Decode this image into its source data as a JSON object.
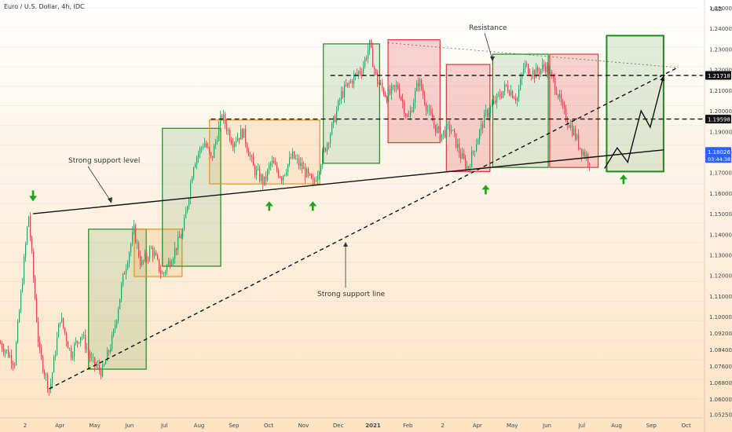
{
  "header": {
    "title": "Euro / U.S. Dollar, 4h, IDC"
  },
  "colors": {
    "bg_top": "#ffffff",
    "bg_bottom": "#fde3c4",
    "green": "#1e8a1e",
    "green_fill": "rgba(46,139,46,0.14)",
    "red": "#d63a3a",
    "red_fill": "rgba(220,60,60,0.22)",
    "orange": "#e8921c",
    "orange_fill": "rgba(240,150,40,0.15)",
    "candle_up": "#2e9b6c",
    "candle_down": "#d6454a",
    "price_tag_blue": "#2962ff",
    "marker_green": "#1aa51a"
  },
  "chart_data": {
    "type": "candlestick",
    "symbol": "Euro / U.S. Dollar",
    "timeframe": "4h",
    "source": "IDC",
    "x_ticks": [
      "2",
      "Apr",
      "May",
      "Jun",
      "Jul",
      "Aug",
      "Sep",
      "Oct",
      "Nov",
      "Dec",
      "2021",
      "Feb",
      "2",
      "Apr",
      "May",
      "Jun",
      "Jul",
      "Aug",
      "Sep",
      "Oct"
    ],
    "y_ticks": [
      "1.25000",
      "1.24000",
      "1.23000",
      "1.22000",
      "1.21000",
      "1.20000",
      "1.19000",
      "1.18000",
      "1.17000",
      "1.16000",
      "1.15000",
      "1.14000",
      "1.13000",
      "1.12000",
      "1.11000",
      "1.10000",
      "1.09200",
      "1.08400",
      "1.07600",
      "1.06800",
      "1.06000",
      "1.05250"
    ],
    "currency_label": "USD",
    "price_tags": [
      {
        "label": "1.21718",
        "value": 1.21718,
        "style": "dark"
      },
      {
        "label": "1.19598",
        "value": 1.19598,
        "style": "dark"
      },
      {
        "label": "1.18026",
        "value": 1.18026,
        "style": "blue",
        "sub": "03:44:38"
      }
    ],
    "annotations": [
      {
        "text": "Resistance"
      },
      {
        "text": "Strong support level"
      },
      {
        "text": "Strong support line"
      }
    ],
    "horizontal_levels": [
      1.21718,
      1.19598
    ],
    "price_path": [
      [
        0.0,
        1.087
      ],
      [
        0.02,
        1.078
      ],
      [
        0.04,
        1.15
      ],
      [
        0.055,
        1.083
      ],
      [
        0.07,
        1.064
      ],
      [
        0.085,
        1.1
      ],
      [
        0.1,
        1.082
      ],
      [
        0.115,
        1.092
      ],
      [
        0.13,
        1.078
      ],
      [
        0.145,
        1.073
      ],
      [
        0.16,
        1.09
      ],
      [
        0.175,
        1.12
      ],
      [
        0.19,
        1.142
      ],
      [
        0.2,
        1.125
      ],
      [
        0.215,
        1.133
      ],
      [
        0.23,
        1.12
      ],
      [
        0.245,
        1.13
      ],
      [
        0.26,
        1.142
      ],
      [
        0.275,
        1.175
      ],
      [
        0.29,
        1.185
      ],
      [
        0.3,
        1.176
      ],
      [
        0.315,
        1.198
      ],
      [
        0.33,
        1.185
      ],
      [
        0.345,
        1.19
      ],
      [
        0.36,
        1.172
      ],
      [
        0.375,
        1.165
      ],
      [
        0.385,
        1.175
      ],
      [
        0.4,
        1.168
      ],
      [
        0.415,
        1.178
      ],
      [
        0.43,
        1.172
      ],
      [
        0.445,
        1.164
      ],
      [
        0.46,
        1.18
      ],
      [
        0.47,
        1.19
      ],
      [
        0.485,
        1.208
      ],
      [
        0.5,
        1.215
      ],
      [
        0.515,
        1.221
      ],
      [
        0.525,
        1.232
      ],
      [
        0.535,
        1.215
      ],
      [
        0.55,
        1.207
      ],
      [
        0.565,
        1.212
      ],
      [
        0.58,
        1.195
      ],
      [
        0.595,
        1.215
      ],
      [
        0.61,
        1.198
      ],
      [
        0.625,
        1.188
      ],
      [
        0.64,
        1.192
      ],
      [
        0.655,
        1.178
      ],
      [
        0.665,
        1.172
      ],
      [
        0.675,
        1.183
      ],
      [
        0.69,
        1.198
      ],
      [
        0.705,
        1.205
      ],
      [
        0.72,
        1.212
      ],
      [
        0.735,
        1.206
      ],
      [
        0.745,
        1.222
      ],
      [
        0.76,
        1.218
      ],
      [
        0.775,
        1.222
      ],
      [
        0.79,
        1.212
      ],
      [
        0.8,
        1.2
      ],
      [
        0.815,
        1.19
      ],
      [
        0.825,
        1.182
      ],
      [
        0.84,
        1.175
      ]
    ],
    "boxes": [
      {
        "color": "green",
        "x1": 0.126,
        "x2": 0.208,
        "y1": 1.0745,
        "y2": 1.1425
      },
      {
        "color": "orange",
        "x1": 0.191,
        "x2": 0.259,
        "y1": 1.1195,
        "y2": 1.1425
      },
      {
        "color": "green",
        "x1": 0.231,
        "x2": 0.314,
        "y1": 1.1245,
        "y2": 1.1915
      },
      {
        "color": "orange",
        "x1": 0.298,
        "x2": 0.455,
        "y1": 1.1645,
        "y2": 1.1955
      },
      {
        "color": "green",
        "x1": 0.46,
        "x2": 0.54,
        "y1": 1.1745,
        "y2": 1.2325
      },
      {
        "color": "red",
        "x1": 0.552,
        "x2": 0.626,
        "y1": 1.1845,
        "y2": 1.2345
      },
      {
        "color": "red",
        "x1": 0.635,
        "x2": 0.697,
        "y1": 1.1705,
        "y2": 1.2225
      },
      {
        "color": "green",
        "x1": 0.701,
        "x2": 0.78,
        "y1": 1.1725,
        "y2": 1.2275
      },
      {
        "color": "red",
        "x1": 0.782,
        "x2": 0.851,
        "y1": 1.1725,
        "y2": 1.2275
      },
      {
        "color": "green",
        "x1": 0.863,
        "x2": 0.944,
        "y1": 1.1705,
        "y2": 1.2365
      }
    ],
    "lines": [
      {
        "kind": "solid",
        "p1": [
          0.047,
          1.15
        ],
        "p2": [
          0.944,
          1.181
        ]
      },
      {
        "kind": "dashed",
        "p1": [
          0.07,
          1.065
        ],
        "p2": [
          0.964,
          1.221
        ]
      },
      {
        "kind": "dotted",
        "p1": [
          0.552,
          1.233
        ],
        "p2": [
          0.965,
          1.221
        ]
      }
    ],
    "projection": [
      [
        0.86,
        1.172
      ],
      [
        0.878,
        1.182
      ],
      [
        0.893,
        1.175
      ],
      [
        0.912,
        1.2
      ],
      [
        0.925,
        1.192
      ],
      [
        0.944,
        1.217
      ]
    ],
    "arrows": [
      {
        "dir": "down",
        "x": 0.047,
        "y": 1.156
      },
      {
        "dir": "up",
        "x": 0.383,
        "y": 1.156
      },
      {
        "dir": "up",
        "x": 0.445,
        "y": 1.156
      },
      {
        "dir": "up",
        "x": 0.691,
        "y": 1.164
      },
      {
        "dir": "up",
        "x": 0.887,
        "y": 1.169
      }
    ]
  }
}
